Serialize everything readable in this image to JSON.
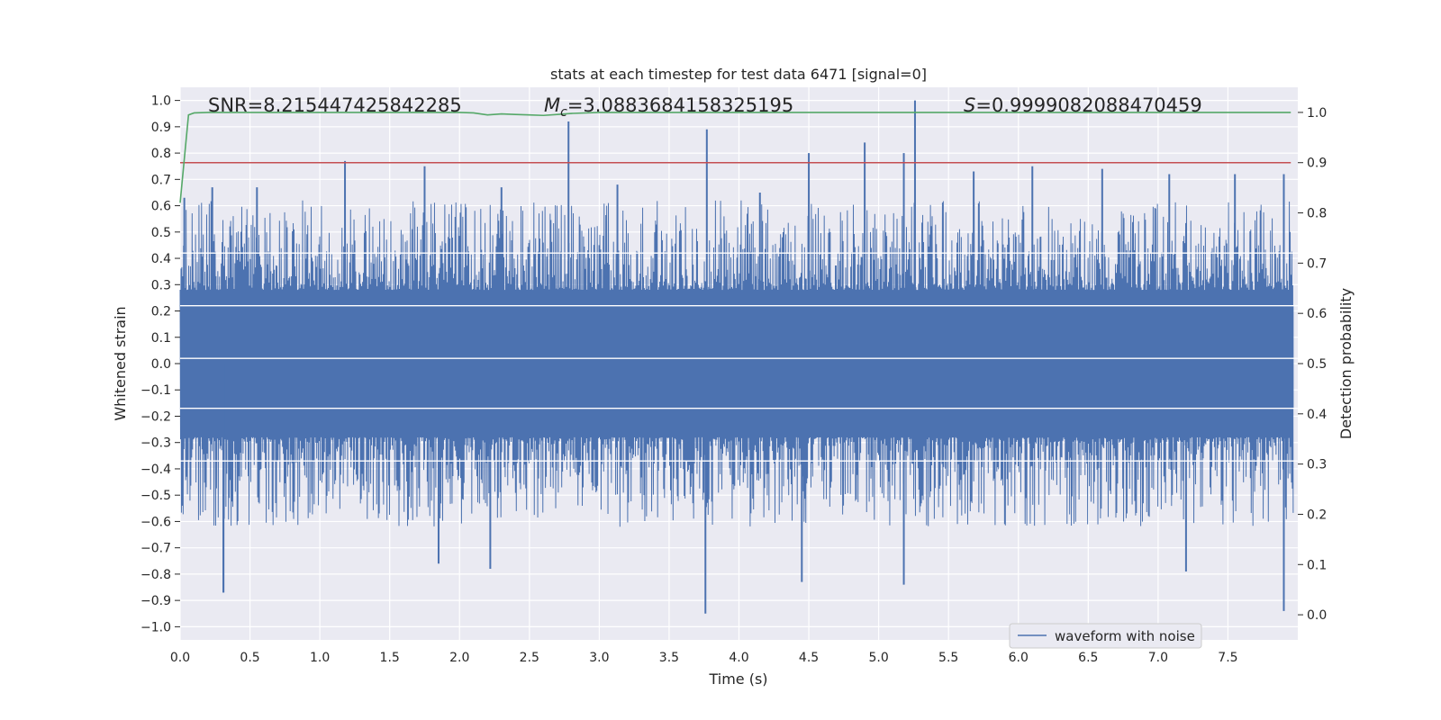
{
  "chart_data": {
    "type": "line",
    "title": "stats at each timestep for test data 6471 [signal=0]",
    "xlabel": "Time (s)",
    "ylabel_left": "Whitened strain",
    "ylabel_right": "Detection probability",
    "xlim": [
      0,
      8
    ],
    "ylim_left": [
      -1.05,
      1.05
    ],
    "ylim_right": [
      -0.05,
      1.05
    ],
    "x_ticks": [
      "0.0",
      "0.5",
      "1.0",
      "1.5",
      "2.0",
      "2.5",
      "3.0",
      "3.5",
      "4.0",
      "4.5",
      "5.0",
      "5.5",
      "6.0",
      "6.5",
      "7.0",
      "7.5"
    ],
    "x_tick_values": [
      0,
      0.5,
      1.0,
      1.5,
      2.0,
      2.5,
      3.0,
      3.5,
      4.0,
      4.5,
      5.0,
      5.5,
      6.0,
      6.5,
      7.0,
      7.5
    ],
    "y_left_ticks": [
      "1.0",
      "0.9",
      "0.8",
      "0.7",
      "0.6",
      "0.5",
      "0.4",
      "0.3",
      "0.2",
      "0.1",
      "0.0",
      "−0.1",
      "−0.2",
      "−0.3",
      "−0.4",
      "−0.5",
      "−0.6",
      "−0.7",
      "−0.8",
      "−0.9",
      "−1.0"
    ],
    "y_left_tick_values": [
      1.0,
      0.9,
      0.8,
      0.7,
      0.6,
      0.5,
      0.4,
      0.3,
      0.2,
      0.1,
      0.0,
      -0.1,
      -0.2,
      -0.3,
      -0.4,
      -0.5,
      -0.6,
      -0.7,
      -0.8,
      -0.9,
      -1.0
    ],
    "y_right_ticks": [
      "1.0",
      "0.9",
      "0.8",
      "0.7",
      "0.6",
      "0.5",
      "0.4",
      "0.3",
      "0.2",
      "0.1",
      "0.0"
    ],
    "y_right_tick_values": [
      1.0,
      0.9,
      0.8,
      0.7,
      0.6,
      0.5,
      0.4,
      0.3,
      0.2,
      0.1,
      0.0
    ],
    "annotations": {
      "snr": "SNR=8.215447425842285",
      "mc_prefix": "M",
      "mc_sub": "c",
      "mc_value": "=3.0883684158325195",
      "s_prefix": "S",
      "s_value": "=0.9999082088470459"
    },
    "legend": {
      "label": "waveform with noise",
      "location": "lower-right"
    },
    "threshold": {
      "axis": "right",
      "value": 0.9
    },
    "detection_probability": {
      "axis": "right",
      "x": [
        0.0,
        0.06,
        0.1,
        0.2,
        0.4,
        0.6,
        0.8,
        1.0,
        1.2,
        1.4,
        1.6,
        1.8,
        2.0,
        2.1,
        2.2,
        2.3,
        2.4,
        2.5,
        2.6,
        2.7,
        2.8,
        3.0,
        3.5,
        4.0,
        4.5,
        5.0,
        5.5,
        6.0,
        6.5,
        7.0,
        7.5,
        7.95
      ],
      "y": [
        0.82,
        0.995,
        0.999,
        1.0,
        1.0,
        1.0,
        1.0,
        1.0,
        1.0,
        1.0,
        1.0,
        1.0,
        1.0,
        0.999,
        0.995,
        0.997,
        0.996,
        0.995,
        0.994,
        0.996,
        0.998,
        1.0,
        1.0,
        1.0,
        1.0,
        1.0,
        1.0,
        1.0,
        1.0,
        1.0,
        1.0,
        1.0
      ]
    },
    "strain_peaks": {
      "axis": "left",
      "x": [
        0.03,
        0.23,
        0.31,
        0.55,
        1.18,
        1.75,
        2.3,
        2.78,
        3.13,
        3.77,
        4.15,
        4.5,
        4.9,
        5.18,
        5.26,
        5.68,
        6.1,
        6.6,
        7.08,
        7.55,
        7.9
      ],
      "y": [
        0.63,
        0.67,
        -0.87,
        0.67,
        0.77,
        0.75,
        0.67,
        0.92,
        0.68,
        0.89,
        0.65,
        0.8,
        0.84,
        0.8,
        1.0,
        0.73,
        0.75,
        0.74,
        0.72,
        0.72,
        0.72
      ],
      "min_x": [
        0.31,
        1.85,
        2.22,
        3.76,
        4.45,
        5.18,
        7.2,
        7.9
      ],
      "min_y": [
        -0.87,
        -0.76,
        -0.78,
        -0.95,
        -0.83,
        -0.84,
        -0.79,
        -0.94
      ]
    },
    "colors": {
      "strain": "#4c72b0",
      "probability": "#55a868",
      "threshold": "#c44e52",
      "plot_bg": "#eaeaf2",
      "grid": "#ffffff"
    }
  }
}
